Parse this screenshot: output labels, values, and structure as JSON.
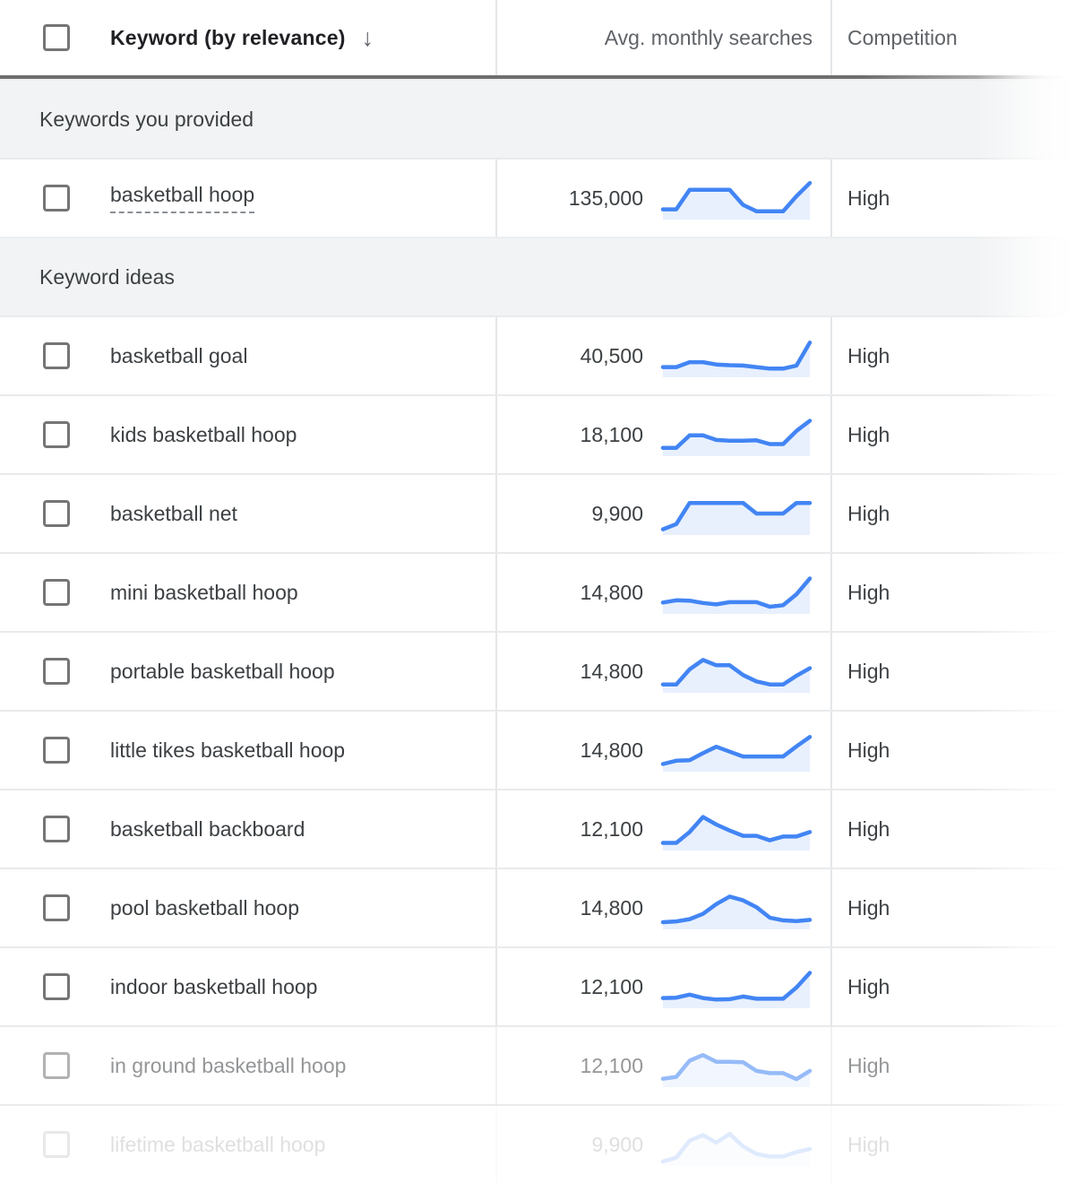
{
  "colors": {
    "trend_line": "#4285f4",
    "trend_fill": "#e8f0fe",
    "header_divider": "#6e6e6e",
    "section_bg": "#f1f3f4",
    "text": "#3c4043"
  },
  "header": {
    "keyword_col": "Keyword (by relevance)",
    "sort_icon_glyph": "↓",
    "searches_col": "Avg. monthly searches",
    "competition_col": "Competition"
  },
  "sections": [
    {
      "label": "Keywords you provided",
      "rows": [
        {
          "keyword": "basketball hoop",
          "searches": "135,000",
          "competition": "High",
          "state": "normal",
          "dashed_underline": true,
          "trend": [
            2,
            2,
            7.2,
            7.2,
            7.2,
            7.2,
            3.2,
            1.5,
            1.5,
            1.5,
            5.5,
            9
          ]
        }
      ]
    },
    {
      "label": "Keyword ideas",
      "rows": [
        {
          "keyword": "basketball goal",
          "searches": "40,500",
          "competition": "High",
          "state": "normal",
          "dashed_underline": false,
          "trend": [
            2,
            2,
            3.3,
            3.3,
            2.7,
            2.5,
            2.4,
            2,
            1.6,
            1.6,
            2.4,
            8.5
          ]
        },
        {
          "keyword": "kids basketball hoop",
          "searches": "18,100",
          "competition": "High",
          "state": "normal",
          "dashed_underline": false,
          "trend": [
            1.5,
            1.5,
            4.8,
            4.8,
            3.6,
            3.4,
            3.4,
            3.5,
            2.5,
            2.5,
            6,
            8.7
          ]
        },
        {
          "keyword": "basketball net",
          "searches": "9,900",
          "competition": "High",
          "state": "normal",
          "dashed_underline": false,
          "trend": [
            0.8,
            2.2,
            7.8,
            7.8,
            7.8,
            7.8,
            7.8,
            5,
            5,
            5,
            7.8,
            7.8
          ]
        },
        {
          "keyword": "mini basketball hoop",
          "searches": "14,800",
          "competition": "High",
          "state": "normal",
          "dashed_underline": false,
          "trend": [
            2.3,
            2.9,
            2.8,
            2.2,
            1.8,
            2.4,
            2.4,
            2.4,
            1.2,
            1.6,
            4.5,
            8.7
          ]
        },
        {
          "keyword": "portable basketball hoop",
          "searches": "14,800",
          "competition": "High",
          "state": "normal",
          "dashed_underline": false,
          "trend": [
            1.5,
            1.5,
            5.5,
            8,
            6.6,
            6.6,
            4,
            2.3,
            1.5,
            1.5,
            3.8,
            5.8
          ]
        },
        {
          "keyword": "little tikes basketball hoop",
          "searches": "14,800",
          "competition": "High",
          "state": "normal",
          "dashed_underline": false,
          "trend": [
            1.3,
            2.2,
            2.3,
            4.2,
            5.9,
            4.6,
            3.3,
            3.3,
            3.3,
            3.3,
            6,
            8.5
          ]
        },
        {
          "keyword": "basketball backboard",
          "searches": "12,100",
          "competition": "High",
          "state": "normal",
          "dashed_underline": false,
          "trend": [
            1.3,
            1.3,
            4.2,
            8.2,
            6.2,
            4.6,
            3.2,
            3.2,
            2,
            3,
            3,
            4.2
          ]
        },
        {
          "keyword": "pool basketball hoop",
          "searches": "14,800",
          "competition": "High",
          "state": "normal",
          "dashed_underline": false,
          "trend": [
            1.2,
            1.4,
            2,
            3.4,
            6,
            8,
            7,
            5.2,
            2.4,
            1.7,
            1.5,
            1.8
          ]
        },
        {
          "keyword": "indoor basketball hoop",
          "searches": "12,100",
          "competition": "High",
          "state": "normal",
          "dashed_underline": false,
          "trend": [
            2,
            2.1,
            2.9,
            2,
            1.6,
            1.7,
            2.4,
            1.8,
            1.8,
            1.8,
            4.8,
            8.7
          ]
        },
        {
          "keyword": "in ground basketball hoop",
          "searches": "12,100",
          "competition": "High",
          "state": "faded",
          "dashed_underline": false,
          "trend": [
            1.5,
            2,
            6.3,
            7.8,
            6,
            6,
            5.9,
            3.6,
            3,
            3,
            1.4,
            3.6
          ]
        },
        {
          "keyword": "lifetime basketball hoop",
          "searches": "9,900",
          "competition": "High",
          "state": "ghost",
          "dashed_underline": false,
          "trend": [
            0.5,
            1.5,
            6,
            7.5,
            5.5,
            7.8,
            4.5,
            2.5,
            1.8,
            1.8,
            3,
            3.8
          ]
        }
      ]
    }
  ]
}
